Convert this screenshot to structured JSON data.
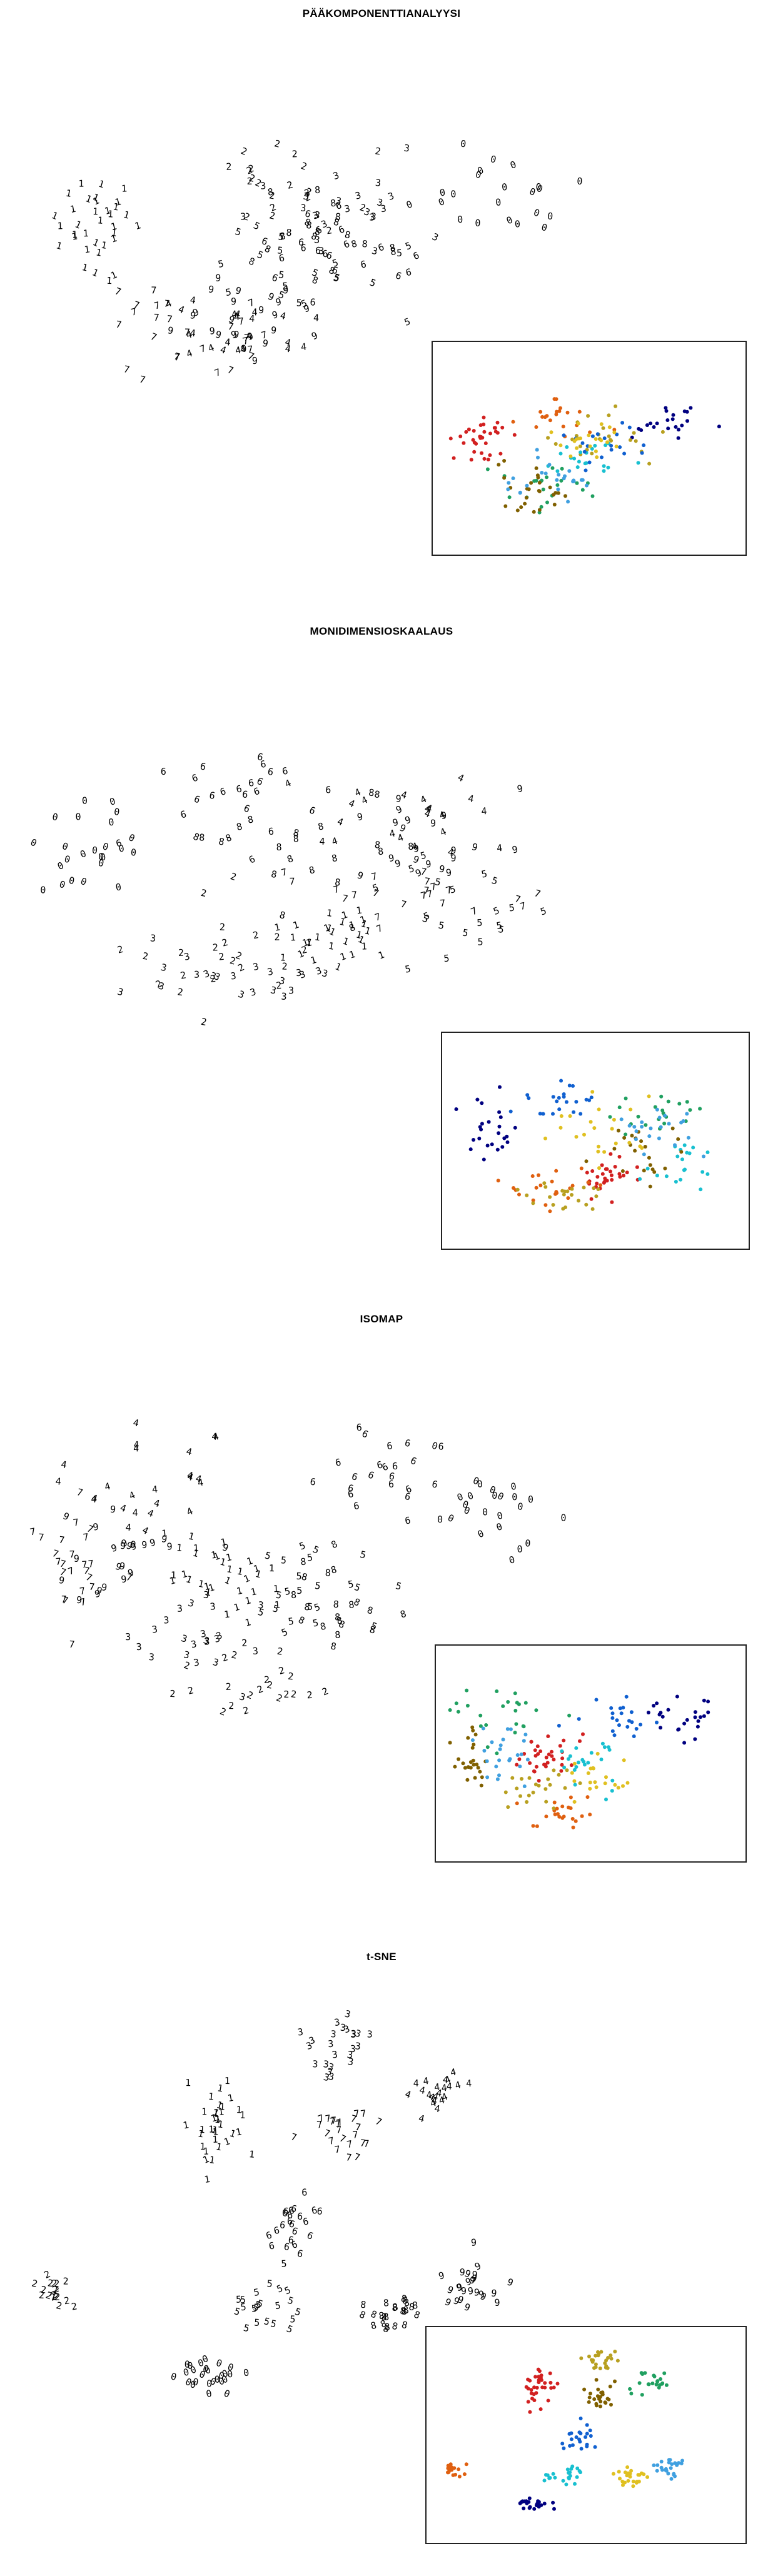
{
  "palette": [
    "#000080",
    "#d22020",
    "#e06010",
    "#b8a020",
    "#20a060",
    "#18c0d0",
    "#1060d0",
    "#806000",
    "#e0c020",
    "#40a0e0"
  ],
  "chart_data": [
    {
      "type": "scatter",
      "title": "PÄÄKOMPONENTTIANALYYSI",
      "xlabel": "",
      "ylabel": "",
      "grid": false,
      "inset": "colored scatter, bottom-right",
      "classes": [
        "0",
        "1",
        "2",
        "3",
        "4",
        "5",
        "6",
        "7",
        "8",
        "9"
      ],
      "clusters": [
        {
          "label": "0",
          "center": [
            0.78,
            0.38
          ],
          "spread": [
            0.12,
            0.09
          ],
          "n": 22
        },
        {
          "label": "1",
          "center": [
            0.12,
            0.45
          ],
          "spread": [
            0.07,
            0.1
          ],
          "n": 34
        },
        {
          "label": "2",
          "center": [
            0.4,
            0.32
          ],
          "spread": [
            0.12,
            0.1
          ],
          "n": 20
        },
        {
          "label": "3",
          "center": [
            0.52,
            0.42
          ],
          "spread": [
            0.14,
            0.12
          ],
          "n": 24
        },
        {
          "label": "4",
          "center": [
            0.35,
            0.7
          ],
          "spread": [
            0.14,
            0.1
          ],
          "n": 22
        },
        {
          "label": "5",
          "center": [
            0.45,
            0.55
          ],
          "spread": [
            0.12,
            0.1
          ],
          "n": 20
        },
        {
          "label": "6",
          "center": [
            0.55,
            0.5
          ],
          "spread": [
            0.12,
            0.1
          ],
          "n": 20
        },
        {
          "label": "7",
          "center": [
            0.3,
            0.72
          ],
          "spread": [
            0.12,
            0.1
          ],
          "n": 26
        },
        {
          "label": "8",
          "center": [
            0.48,
            0.45
          ],
          "spread": [
            0.12,
            0.1
          ],
          "n": 20
        },
        {
          "label": "9",
          "center": [
            0.38,
            0.68
          ],
          "spread": [
            0.13,
            0.1
          ],
          "n": 24
        }
      ]
    },
    {
      "type": "scatter",
      "title": "MONIDIMENSIOSKAALAUS",
      "xlabel": "",
      "ylabel": "",
      "grid": false,
      "inset": "colored scatter, bottom-right",
      "classes": [
        "0",
        "1",
        "2",
        "3",
        "4",
        "5",
        "6",
        "7",
        "8",
        "9"
      ],
      "clusters": [
        {
          "label": "0",
          "center": [
            0.12,
            0.45
          ],
          "spread": [
            0.08,
            0.14
          ],
          "n": 24
        },
        {
          "label": "1",
          "center": [
            0.55,
            0.68
          ],
          "spread": [
            0.08,
            0.08
          ],
          "n": 30
        },
        {
          "label": "2",
          "center": [
            0.35,
            0.72
          ],
          "spread": [
            0.14,
            0.1
          ],
          "n": 22
        },
        {
          "label": "3",
          "center": [
            0.42,
            0.78
          ],
          "spread": [
            0.15,
            0.08
          ],
          "n": 22
        },
        {
          "label": "4",
          "center": [
            0.7,
            0.35
          ],
          "spread": [
            0.14,
            0.12
          ],
          "n": 22
        },
        {
          "label": "5",
          "center": [
            0.78,
            0.6
          ],
          "spread": [
            0.1,
            0.12
          ],
          "n": 20
        },
        {
          "label": "6",
          "center": [
            0.38,
            0.28
          ],
          "spread": [
            0.14,
            0.1
          ],
          "n": 22
        },
        {
          "label": "7",
          "center": [
            0.68,
            0.55
          ],
          "spread": [
            0.14,
            0.12
          ],
          "n": 22
        },
        {
          "label": "8",
          "center": [
            0.5,
            0.45
          ],
          "spread": [
            0.16,
            0.14
          ],
          "n": 22
        },
        {
          "label": "9",
          "center": [
            0.72,
            0.42
          ],
          "spread": [
            0.12,
            0.12
          ],
          "n": 22
        }
      ]
    },
    {
      "type": "scatter",
      "title": "ISOMAP",
      "xlabel": "",
      "ylabel": "",
      "grid": false,
      "inset": "colored scatter, bottom-right",
      "classes": [
        "0",
        "1",
        "2",
        "3",
        "4",
        "5",
        "6",
        "7",
        "8",
        "9"
      ],
      "clusters": [
        {
          "label": "0",
          "center": [
            0.82,
            0.35
          ],
          "spread": [
            0.09,
            0.12
          ],
          "n": 24
        },
        {
          "label": "1",
          "center": [
            0.35,
            0.52
          ],
          "spread": [
            0.08,
            0.1
          ],
          "n": 34
        },
        {
          "label": "2",
          "center": [
            0.4,
            0.8
          ],
          "spread": [
            0.1,
            0.08
          ],
          "n": 22
        },
        {
          "label": "3",
          "center": [
            0.3,
            0.7
          ],
          "spread": [
            0.1,
            0.1
          ],
          "n": 22
        },
        {
          "label": "4",
          "center": [
            0.2,
            0.3
          ],
          "spread": [
            0.12,
            0.12
          ],
          "n": 24
        },
        {
          "label": "5",
          "center": [
            0.52,
            0.55
          ],
          "spread": [
            0.12,
            0.12
          ],
          "n": 22
        },
        {
          "label": "6",
          "center": [
            0.62,
            0.3
          ],
          "spread": [
            0.12,
            0.1
          ],
          "n": 22
        },
        {
          "label": "7",
          "center": [
            0.08,
            0.52
          ],
          "spread": [
            0.06,
            0.12
          ],
          "n": 24
        },
        {
          "label": "8",
          "center": [
            0.55,
            0.62
          ],
          "spread": [
            0.12,
            0.1
          ],
          "n": 20
        },
        {
          "label": "9",
          "center": [
            0.18,
            0.5
          ],
          "spread": [
            0.1,
            0.12
          ],
          "n": 24
        }
      ]
    },
    {
      "type": "scatter",
      "title": "t-SNE",
      "xlabel": "",
      "ylabel": "",
      "grid": false,
      "inset": "colored scatter, bottom-right",
      "classes": [
        "0",
        "1",
        "2",
        "3",
        "4",
        "5",
        "6",
        "7",
        "8",
        "9"
      ],
      "clusters": [
        {
          "label": "0",
          "center": [
            0.32,
            0.86
          ],
          "spread": [
            0.05,
            0.03
          ],
          "n": 26
        },
        {
          "label": "1",
          "center": [
            0.34,
            0.28
          ],
          "spread": [
            0.05,
            0.1
          ],
          "n": 34
        },
        {
          "label": "2",
          "center": [
            0.05,
            0.68
          ],
          "spread": [
            0.03,
            0.03
          ],
          "n": 18
        },
        {
          "label": "3",
          "center": [
            0.55,
            0.12
          ],
          "spread": [
            0.06,
            0.06
          ],
          "n": 24
        },
        {
          "label": "4",
          "center": [
            0.72,
            0.22
          ],
          "spread": [
            0.05,
            0.05
          ],
          "n": 22
        },
        {
          "label": "5",
          "center": [
            0.42,
            0.7
          ],
          "spread": [
            0.05,
            0.05
          ],
          "n": 22
        },
        {
          "label": "6",
          "center": [
            0.48,
            0.52
          ],
          "spread": [
            0.05,
            0.06
          ],
          "n": 22
        },
        {
          "label": "7",
          "center": [
            0.55,
            0.3
          ],
          "spread": [
            0.05,
            0.06
          ],
          "n": 24
        },
        {
          "label": "8",
          "center": [
            0.64,
            0.72
          ],
          "spread": [
            0.05,
            0.04
          ],
          "n": 24
        },
        {
          "label": "9",
          "center": [
            0.78,
            0.66
          ],
          "spread": [
            0.05,
            0.05
          ],
          "n": 24
        }
      ]
    }
  ]
}
